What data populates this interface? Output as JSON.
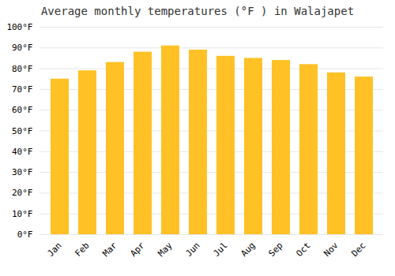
{
  "chart_data": {
    "type": "bar",
    "title": "Average monthly temperatures (°F ) in Walajapet",
    "categories": [
      "Jan",
      "Feb",
      "Mar",
      "Apr",
      "May",
      "Jun",
      "Jul",
      "Aug",
      "Sep",
      "Oct",
      "Nov",
      "Dec"
    ],
    "values": [
      75,
      79,
      83,
      88,
      91,
      89,
      86,
      85,
      84,
      82,
      78,
      76
    ],
    "color": "#FFC125",
    "ylim": [
      0,
      100
    ],
    "yticks": [
      {
        "value": 0,
        "label": "0°F"
      },
      {
        "value": 10,
        "label": "10°F"
      },
      {
        "value": 20,
        "label": "20°F"
      },
      {
        "value": 30,
        "label": "30°F"
      },
      {
        "value": 40,
        "label": "40°F"
      },
      {
        "value": 50,
        "label": "50°F"
      },
      {
        "value": 60,
        "label": "60°F"
      },
      {
        "value": 70,
        "label": "70°F"
      },
      {
        "value": 80,
        "label": "80°F"
      },
      {
        "value": 90,
        "label": "90°F"
      },
      {
        "value": 100,
        "label": "100°F"
      }
    ],
    "grid": true
  }
}
